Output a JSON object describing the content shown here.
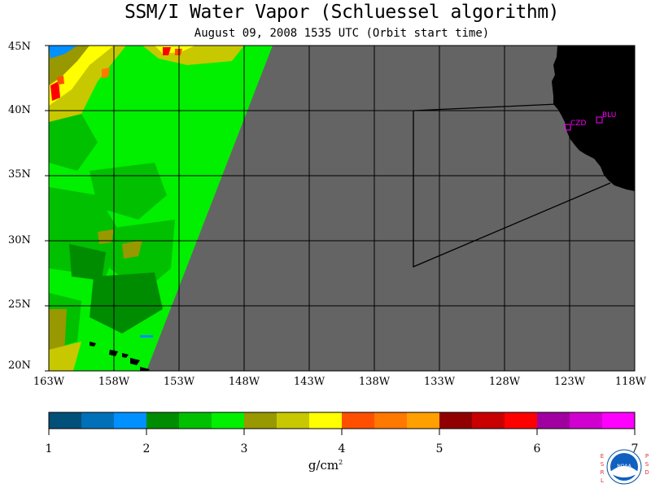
{
  "title": "SSM/I Water Vapor (Schluessel algorithm)",
  "subtitle": "August 09, 2008  1535 UTC  (Orbit start time)",
  "lat_labels": [
    "45N",
    "40N",
    "35N",
    "30N",
    "25N",
    "20N"
  ],
  "lon_labels": [
    "163W",
    "158W",
    "153W",
    "148W",
    "143W",
    "138W",
    "133W",
    "128W",
    "123W",
    "118W"
  ],
  "stations": [
    {
      "name": "CZD",
      "lat": 38.6,
      "lon": -123.2
    },
    {
      "name": "BLU",
      "lat": 39.2,
      "lon": -120.9
    }
  ],
  "colorbar": {
    "ticks": [
      "1",
      "2",
      "3",
      "4",
      "5",
      "6",
      "7"
    ],
    "colors": [
      "#00507a",
      "#0070b8",
      "#0090ff",
      "#008c00",
      "#00c000",
      "#00f000",
      "#989800",
      "#c8c800",
      "#ffff00",
      "#ff5000",
      "#ff7800",
      "#ffa000",
      "#900000",
      "#c80000",
      "#ff0000",
      "#a000a0",
      "#d000d0",
      "#ff00ff"
    ]
  },
  "units_label": "g/cm",
  "units_superscript": "2",
  "logo": {
    "left_text": "ESRL",
    "right_text": "PSD",
    "center_text": "NOAA"
  },
  "colors": {
    "missing": "#646464",
    "land": "#000000",
    "station": "#ff00ff"
  }
}
